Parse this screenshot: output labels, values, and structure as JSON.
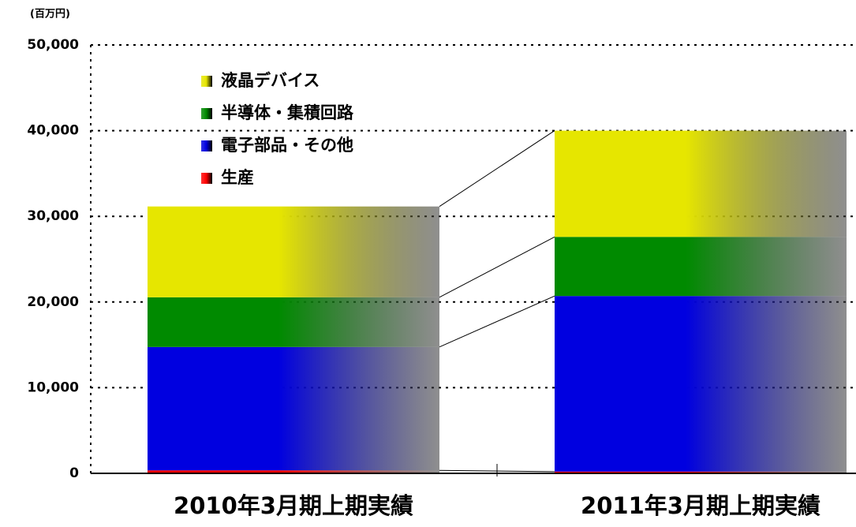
{
  "chart_data": {
    "type": "stacked_bar",
    "ylabel": "(百万円)",
    "categories": [
      "2010年3月期上期実績",
      "2011年3月期上期実績"
    ],
    "series": [
      {
        "name": "生産",
        "color": "#ff0000",
        "values": [
          350,
          200
        ]
      },
      {
        "name": "電子部品・その他",
        "color": "#0000e0",
        "values": [
          14400,
          20500
        ]
      },
      {
        "name": "半導体・集積回路",
        "color": "#008a00",
        "values": [
          5800,
          6900
        ]
      },
      {
        "name": "液晶デバイス",
        "color": "#e6e600",
        "values": [
          10600,
          12400
        ]
      }
    ],
    "ylim": [
      0,
      50000
    ],
    "yticks": [
      0,
      {
        "value": 10000,
        "label": "10,000"
      },
      {
        "value": 20000,
        "label": "20,000"
      },
      {
        "value": 30000,
        "label": "30,000"
      },
      {
        "value": 40000,
        "label": "40,000"
      },
      {
        "value": 50000,
        "label": "50,000"
      }
    ],
    "grid": true,
    "legend": "upper left"
  }
}
